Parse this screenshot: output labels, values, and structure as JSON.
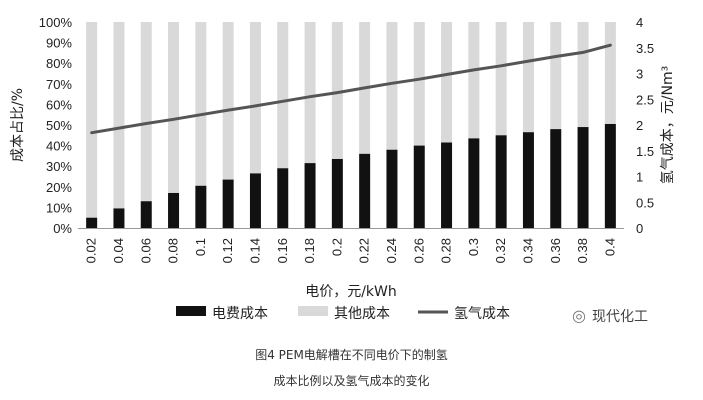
{
  "chart_data": {
    "type": "bar",
    "categories": [
      "0.02",
      "0.04",
      "0.06",
      "0.08",
      "0.1",
      "0.12",
      "0.14",
      "0.16",
      "0.18",
      "0.2",
      "0.22",
      "0.24",
      "0.26",
      "0.28",
      "0.3",
      "0.32",
      "0.34",
      "0.36",
      "0.38",
      "0.4"
    ],
    "series": [
      {
        "name": "电费成本",
        "kind": "bar-stacked",
        "axis": "left",
        "color": "#111111",
        "values": [
          5,
          9.5,
          13,
          17,
          20.5,
          23.5,
          26.5,
          29,
          31.5,
          33.5,
          36,
          38,
          40,
          41.5,
          43.5,
          45,
          46.5,
          48,
          49,
          50.5
        ]
      },
      {
        "name": "其他成本",
        "kind": "bar-stacked",
        "axis": "left",
        "color": "#d9d9d9",
        "values": [
          95,
          90.5,
          87,
          83,
          79.5,
          76.5,
          73.5,
          71,
          68.5,
          66.5,
          64,
          62,
          60,
          58.5,
          56.5,
          55,
          53.5,
          52,
          51,
          49.5
        ]
      },
      {
        "name": "氢气成本",
        "kind": "line",
        "axis": "right",
        "color": "#555555",
        "values": [
          1.85,
          1.94,
          2.03,
          2.11,
          2.2,
          2.29,
          2.37,
          2.46,
          2.55,
          2.63,
          2.72,
          2.81,
          2.89,
          2.98,
          3.07,
          3.15,
          3.24,
          3.33,
          3.41,
          3.55
        ]
      }
    ],
    "xlabel": "电价，元/kWh",
    "ylabel_left": "成本占比/%",
    "ylabel_right": "氢气成本，元/Nm³",
    "ylim_left": [
      0,
      100
    ],
    "ylim_right": [
      0,
      4
    ],
    "left_ticks": [
      "0%",
      "10%",
      "20%",
      "30%",
      "40%",
      "50%",
      "60%",
      "70%",
      "80%",
      "90%",
      "100%"
    ],
    "right_ticks": [
      "0",
      "0.5",
      "1",
      "1.5",
      "2",
      "2.5",
      "3",
      "3.5",
      "4"
    ],
    "legend_position": "bottom",
    "grid": false
  },
  "caption": {
    "line1": "图4  PEM电解槽在不同电价下的制氢",
    "line2": "成本比例以及氢气成本的变化"
  },
  "watermark": {
    "icon": "wechat-icon",
    "text": "现代化工"
  }
}
